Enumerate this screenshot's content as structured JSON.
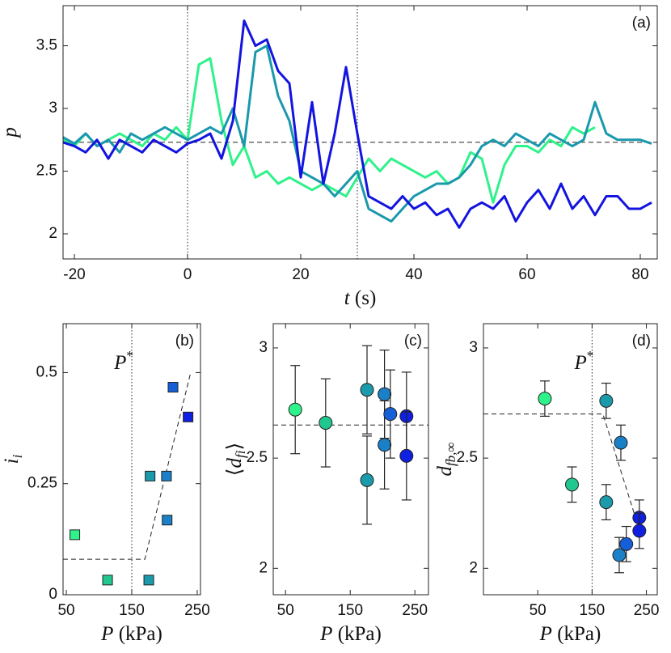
{
  "chart_data": [
    {
      "type": "line",
      "panel_label": "(a)",
      "xlabel": {
        "base": "t",
        "post": " (s)"
      },
      "ylabel": {
        "base": "p"
      },
      "xlim": [
        -22,
        83
      ],
      "xticks": [
        -20,
        0,
        20,
        40,
        60,
        80
      ],
      "ylim": [
        1.8,
        3.82
      ],
      "yticks": [
        2,
        2.5,
        3,
        3.5
      ],
      "vlines": [
        0,
        30
      ],
      "hlines": [
        2.73
      ],
      "x": [
        -22,
        -20,
        -18,
        -16,
        -14,
        -12,
        -10,
        -8,
        -6,
        -4,
        -2,
        0,
        2,
        4,
        6,
        8,
        10,
        12,
        14,
        16,
        18,
        20,
        22,
        24,
        26,
        28,
        30,
        32,
        34,
        36,
        38,
        40,
        42,
        44,
        46,
        48,
        50,
        52,
        54,
        56,
        58,
        60,
        62,
        64,
        66,
        68,
        70,
        72,
        74,
        76,
        78,
        80,
        82
      ],
      "series": [
        {
          "color": "#2ef28a",
          "values": [
            2.75,
            2.7,
            2.8,
            2.7,
            2.75,
            2.8,
            2.75,
            2.7,
            2.8,
            2.75,
            2.85,
            2.75,
            3.35,
            3.4,
            2.9,
            2.55,
            2.7,
            2.45,
            2.5,
            2.4,
            2.45,
            2.4,
            2.35,
            2.4,
            2.35,
            2.3,
            2.45,
            2.6,
            2.5,
            2.6,
            2.55,
            2.5,
            2.45,
            2.5,
            2.4,
            2.45,
            2.65,
            2.6,
            2.25,
            2.55,
            2.7,
            2.7,
            2.65,
            2.75,
            2.7,
            2.85,
            2.8,
            2.85,
            null,
            null,
            null,
            null,
            null
          ]
        },
        {
          "color": "#1a98ac",
          "values": [
            2.77,
            2.72,
            2.8,
            2.7,
            2.75,
            2.65,
            2.8,
            2.75,
            2.8,
            2.85,
            2.8,
            2.75,
            2.8,
            2.85,
            2.8,
            3.0,
            2.7,
            3.45,
            3.5,
            3.1,
            2.9,
            2.5,
            2.45,
            2.4,
            2.3,
            2.4,
            2.5,
            2.2,
            2.15,
            2.1,
            2.2,
            2.3,
            2.35,
            2.4,
            2.4,
            2.45,
            2.55,
            2.7,
            2.75,
            2.7,
            2.8,
            2.75,
            2.7,
            2.8,
            2.75,
            2.7,
            2.75,
            3.05,
            2.8,
            2.75,
            2.75,
            2.75,
            2.72
          ]
        },
        {
          "color": "#1414e0",
          "values": [
            2.73,
            2.7,
            2.65,
            2.75,
            2.6,
            2.75,
            2.7,
            2.65,
            2.75,
            2.7,
            2.65,
            2.72,
            2.75,
            2.8,
            2.6,
            2.9,
            3.7,
            3.5,
            3.55,
            3.3,
            3.2,
            2.45,
            3.05,
            2.4,
            2.8,
            3.33,
            2.8,
            2.3,
            2.25,
            2.2,
            2.3,
            2.2,
            2.25,
            2.15,
            2.2,
            2.05,
            2.2,
            2.25,
            2.2,
            2.3,
            2.1,
            2.25,
            2.35,
            2.2,
            2.4,
            2.2,
            2.3,
            2.15,
            2.3,
            2.3,
            2.2,
            2.2,
            2.25
          ]
        }
      ]
    },
    {
      "type": "scatter",
      "marker": "square",
      "panel_label": "(b)",
      "xlabel": {
        "base": "P",
        "post": " (kPa)"
      },
      "ylabel": {
        "base": "i",
        "sub": "i"
      },
      "xlim": [
        45,
        255
      ],
      "xticks": [
        50,
        150,
        250
      ],
      "ylim": [
        0,
        0.61
      ],
      "yticks": [
        0,
        0.25,
        0.5
      ],
      "vlines": [
        150
      ],
      "vline_label": {
        "base": "P",
        "sup": "*"
      },
      "guide": {
        "x": [
          45,
          170,
          240
        ],
        "y": [
          0.08,
          0.08,
          0.5
        ]
      },
      "x": [
        63,
        113,
        176,
        178,
        203,
        204,
        213,
        236
      ],
      "values": [
        0.135,
        0.033,
        0.033,
        0.267,
        0.267,
        0.168,
        0.467,
        0.4
      ],
      "colors": [
        "#2ef28a",
        "#20c890",
        "#1a9aaa",
        "#1a9aaa",
        "#1a80c8",
        "#1a80c8",
        "#1560d8",
        "#1020e0"
      ]
    },
    {
      "type": "scatter",
      "marker": "circle",
      "panel_label": "(c)",
      "xlabel": {
        "base": "P",
        "post": " (kPa)"
      },
      "ylabel": {
        "pre": "⟨",
        "base": "d",
        "sub": "fi",
        "post": "⟩"
      },
      "xlim": [
        31,
        271
      ],
      "xticks": [
        50,
        150,
        250
      ],
      "ylim": [
        1.88,
        3.11
      ],
      "yticks": [
        2,
        2.5,
        3
      ],
      "hlines": [
        2.65
      ],
      "x": [
        65,
        112,
        176,
        176,
        203,
        203,
        212,
        237,
        237
      ],
      "values": [
        2.72,
        2.66,
        2.81,
        2.4,
        2.79,
        2.56,
        2.7,
        2.69,
        2.51
      ],
      "errors": [
        0.2,
        0.2,
        0.2,
        0.2,
        0.2,
        0.2,
        0.2,
        0.2,
        0.2
      ],
      "colors": [
        "#2ef28a",
        "#20c890",
        "#1a9aaa",
        "#1a9aaa",
        "#1a80c8",
        "#1a80c8",
        "#1560d8",
        "#1020e0",
        "#1020e0"
      ]
    },
    {
      "type": "scatter",
      "marker": "circle",
      "panel_label": "(d)",
      "xlabel": {
        "base": "P",
        "post": " (kPa)"
      },
      "ylabel": {
        "base": "d",
        "sub": "fb,∞"
      },
      "xlim": [
        -50,
        270
      ],
      "xticks": [
        50,
        150,
        250
      ],
      "ylim": [
        1.88,
        3.11
      ],
      "yticks": [
        2,
        2.5,
        3
      ],
      "vlines": [
        150
      ],
      "vline_label": {
        "base": "P",
        "sup": "*"
      },
      "guide": {
        "x": [
          -50,
          170,
          230
        ],
        "y": [
          2.7,
          2.7,
          2.23
        ]
      },
      "x": [
        63,
        113,
        176,
        176,
        203,
        200,
        213,
        237,
        237
      ],
      "values": [
        2.77,
        2.38,
        2.76,
        2.3,
        2.57,
        2.06,
        2.11,
        2.23,
        2.17
      ],
      "errors": [
        0.08,
        0.08,
        0.08,
        0.08,
        0.08,
        0.08,
        0.08,
        0.08,
        0.08
      ],
      "colors": [
        "#2ef28a",
        "#20c890",
        "#1a9aaa",
        "#1a9aaa",
        "#1a80c8",
        "#1a80c8",
        "#1560d8",
        "#1020e0",
        "#1020e0"
      ]
    }
  ]
}
